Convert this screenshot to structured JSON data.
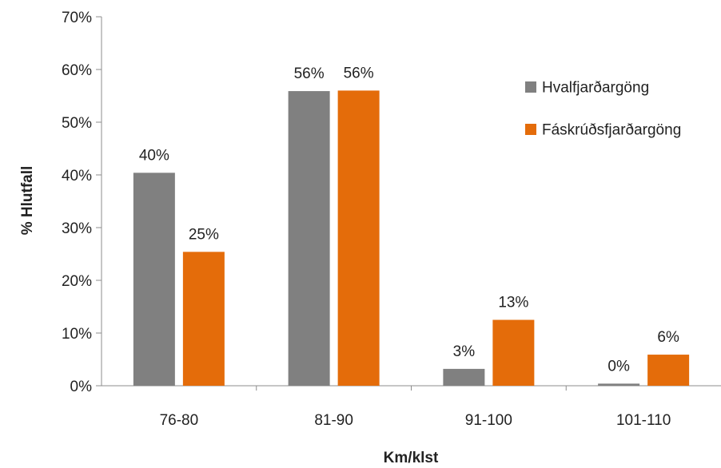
{
  "chart_data": {
    "type": "bar",
    "title": "",
    "xlabel": "Km/klst",
    "ylabel": "% Hlutfall",
    "categories": [
      "76-80",
      "81-90",
      "91-100",
      "101-110"
    ],
    "series": [
      {
        "name": "Hvalfjarðargöng",
        "color": "#808080",
        "values": [
          40.4,
          55.9,
          3.2,
          0.4
        ],
        "labels": [
          "40%",
          "56%",
          "3%",
          "0%"
        ]
      },
      {
        "name": "Fáskrúðsfjarðargöng",
        "color": "#E46C0A",
        "values": [
          25.4,
          56.0,
          12.5,
          5.9
        ],
        "labels": [
          "25%",
          "56%",
          "13%",
          "6%"
        ]
      }
    ],
    "ylim": [
      0,
      70
    ],
    "yticks": [
      0,
      10,
      20,
      30,
      40,
      50,
      60,
      70
    ],
    "ytick_labels": [
      "0%",
      "10%",
      "20%",
      "30%",
      "40%",
      "50%",
      "60%",
      "70%"
    ],
    "grid": false,
    "legend_position": "top-right"
  }
}
